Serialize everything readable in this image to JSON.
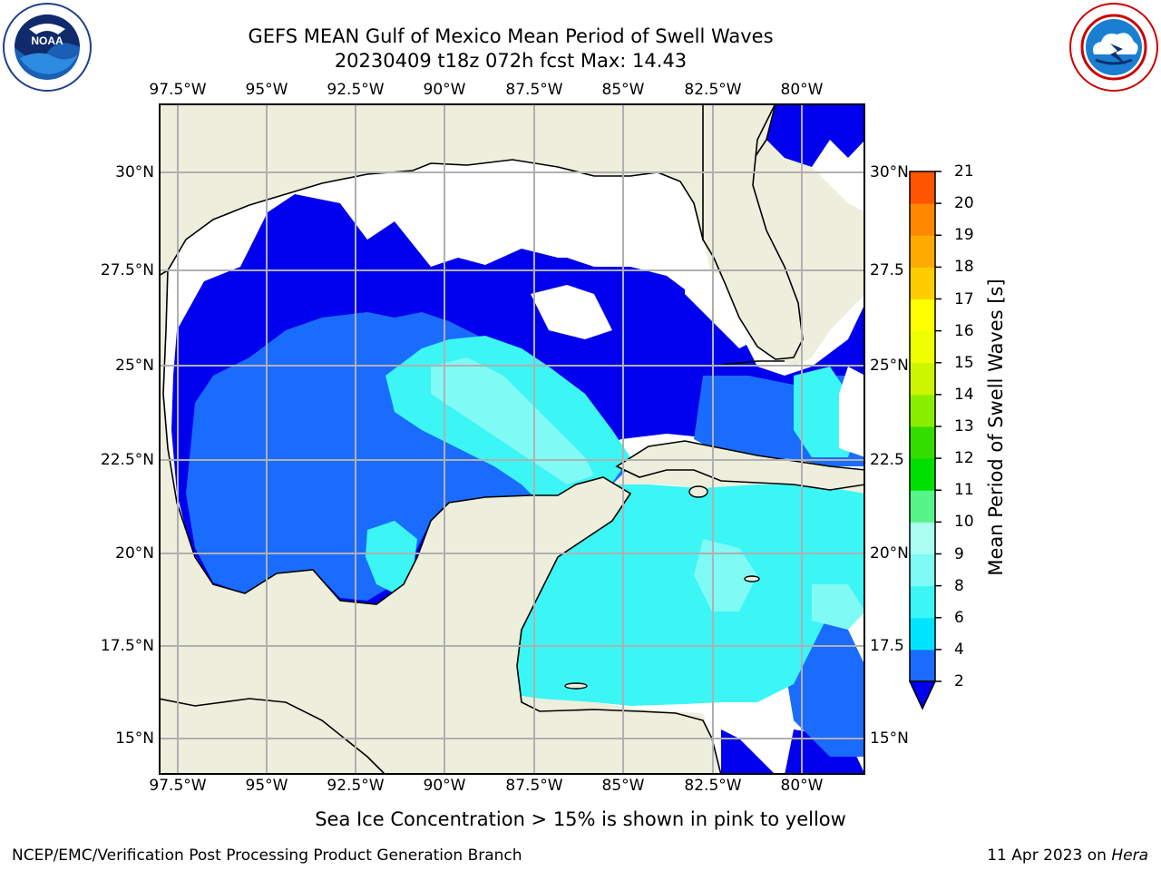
{
  "header": {
    "title_line1": "GEFS MEAN Gulf of Mexico Mean Period of Swell Waves",
    "title_line2": "20230409 t18z 072h fcst   Max: 14.43"
  },
  "logos": {
    "left": "noaa-logo",
    "right": "national-weather-service-logo"
  },
  "map": {
    "lon_labels_top": [
      "97.5°W",
      "95°W",
      "92.5°W",
      "90°W",
      "87.5°W",
      "85°W",
      "82.5°W",
      "80°W"
    ],
    "lon_labels_bottom": [
      "97.5°W",
      "95°W",
      "92.5°W",
      "90°W",
      "87.5°W",
      "85°W",
      "82.5°W",
      "80°W"
    ],
    "lat_labels_left": [
      "30°N",
      "27.5°N",
      "25°N",
      "22.5°N",
      "20°N",
      "17.5°N",
      "15°N"
    ],
    "lat_labels_right": [
      "30°N",
      "27.5",
      "25°N",
      "22.5",
      "20°N",
      "17.5",
      "15°N"
    ],
    "land_color": "#eeeedd",
    "grid_color": "#b0b0b0"
  },
  "colorbar": {
    "title": "Mean Period of Swell Waves [s]",
    "labels": [
      "2",
      "4",
      "6",
      "8",
      "9",
      "10",
      "11",
      "12",
      "13",
      "14",
      "15",
      "16",
      "17",
      "18",
      "19",
      "20",
      "21"
    ],
    "colors": [
      "#1a6cff",
      "#00e5ff",
      "#3cf5f5",
      "#7ffaf5",
      "#aafff0",
      "#55f58a",
      "#00e000",
      "#33dd00",
      "#88ee00",
      "#ccf500",
      "#eeff00",
      "#ffff00",
      "#ffcc00",
      "#ffaa00",
      "#ff8800",
      "#ff5500",
      "#ff2200",
      "#ff0000"
    ],
    "extend_color": "#0000ee"
  },
  "footer": {
    "ice_note": "Sea Ice Concentration > 15% is shown in pink to yellow",
    "credit": "NCEP/EMC/Verification Post Processing Product Generation Branch",
    "date": "11 Apr 2023 on ",
    "machine": "Hera"
  }
}
